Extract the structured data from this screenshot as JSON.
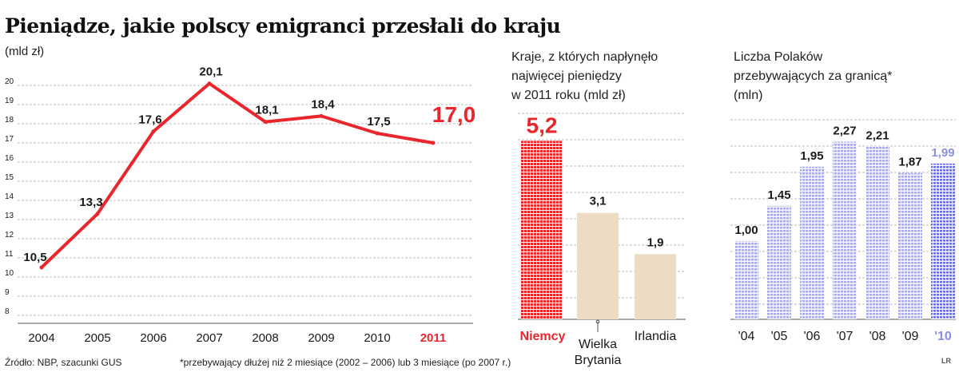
{
  "title": "Pieniądze, jakie polscy emigranci przesłali do kraju",
  "unit": "(mld zł)",
  "chart2_title_lines": [
    "Kraje, z których napłynęło",
    "najwięcej pieniędzy",
    "w 2011 roku (mld zł)"
  ],
  "chart3_title_lines": [
    "Liczba Polaków",
    "przebywających za granicą*",
    "(mln)"
  ],
  "source": "Źródło: NBP, szacunki GUS",
  "note": "*przebywający dłużej niż 2 miesiące (2002 – 2006) lub 3 miesiące (po 2007 r.)",
  "signature": "LR",
  "colors": {
    "highlight": "#e8262c",
    "text": "#1a1a1a",
    "bar_beige": "#ecdcc4",
    "bar_blue": "#8c8fe0",
    "grid": "#bdbdbd"
  },
  "chart_data": [
    {
      "type": "line",
      "x": [
        "2004",
        "2005",
        "2006",
        "2007",
        "2008",
        "2009",
        "2010",
        "2011"
      ],
      "values": [
        10.5,
        13.3,
        17.6,
        20.1,
        18.1,
        18.4,
        17.5,
        17.0
      ],
      "value_labels": [
        "10,5",
        "13,3",
        "17,6",
        "20,1",
        "18,1",
        "18,4",
        "17,5",
        "17,0"
      ],
      "yticks": [
        "8",
        "9",
        "10",
        "11",
        "12",
        "13",
        "14",
        "15",
        "16",
        "17",
        "18",
        "19",
        "20"
      ],
      "ylim": [
        8,
        20
      ],
      "grid": true,
      "highlight_last": true
    },
    {
      "type": "bar",
      "categories": [
        "Niemcy",
        "Wielka Brytania",
        "Irlandia"
      ],
      "category_lines": [
        [
          "Niemcy"
        ],
        [
          "Wielka",
          "Brytania"
        ],
        [
          "Irlandia"
        ]
      ],
      "values": [
        5.2,
        3.1,
        1.9
      ],
      "value_labels": [
        "5,2",
        "3,1",
        "1,9"
      ],
      "highlight_index": 0,
      "grid": true
    },
    {
      "type": "bar",
      "categories": [
        "'04",
        "'05",
        "'06",
        "'07",
        "'08",
        "'09",
        "'10"
      ],
      "values": [
        1.0,
        1.45,
        1.95,
        2.27,
        2.21,
        1.87,
        1.99
      ],
      "value_labels": [
        "1,00",
        "1,45",
        "1,95",
        "2,27",
        "2,21",
        "1,87",
        "1,99"
      ],
      "highlight_index": 6,
      "grid": true
    }
  ]
}
